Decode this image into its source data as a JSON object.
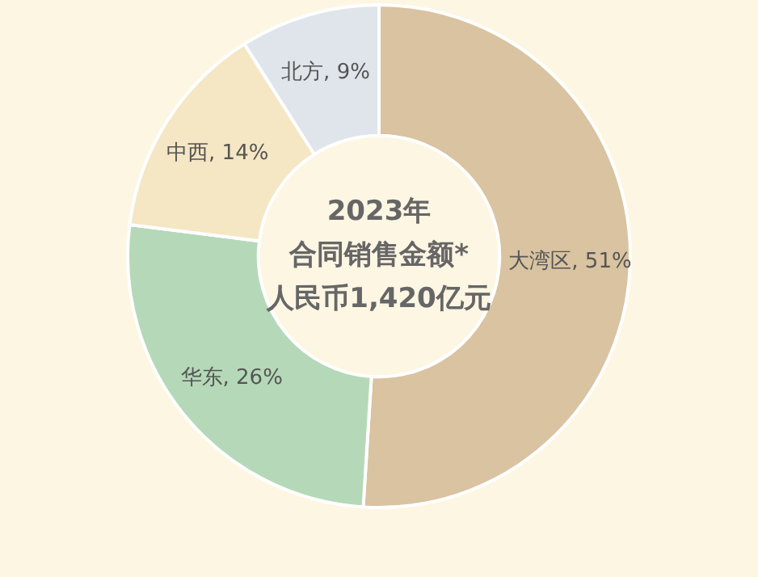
{
  "chart_data": {
    "type": "donut",
    "title": "2023年",
    "subtitle": "合同销售金额*",
    "annotations": [
      "人民币1,420亿元"
    ],
    "categories": [
      "大湾区",
      "华东",
      "中西",
      "北方"
    ],
    "values": [
      51,
      26,
      14,
      9
    ],
    "colors": [
      "#d9c3a0",
      "#b5d9b8",
      "#f5e6c4",
      "#dfe5ea"
    ],
    "value_labels": [
      "51%",
      "26%",
      "14%",
      "9%"
    ],
    "legend": false
  }
}
